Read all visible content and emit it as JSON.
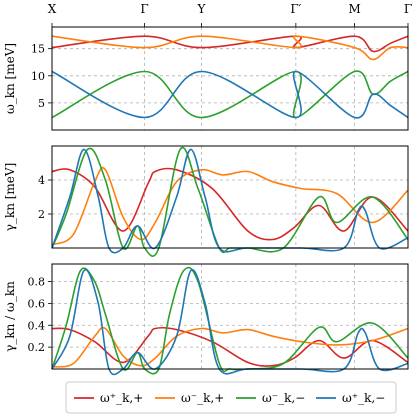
{
  "chart_data": [
    {
      "type": "line",
      "ylabel": "ω_kn [meV]",
      "ylim": [
        0,
        19
      ],
      "yticks": [
        "5",
        "10",
        "15"
      ],
      "x_points": [
        "X",
        "Γ",
        "Y",
        "Γ′",
        "M",
        "Γ"
      ],
      "x": [
        0,
        0.15,
        0.29,
        0.41,
        0.55,
        0.65,
        0.75,
        0.85,
        1.0
      ],
      "series": [
        {
          "name": "ω⁺_k,+",
          "color": "#d62728",
          "x": [
            0,
            0.15,
            0.29,
            0.415,
            0.55,
            0.695,
            0.8,
            0.9,
            1.0
          ],
          "values": [
            15.2,
            17.3,
            15.2,
            17.3,
            15.2,
            17.3,
            14.5,
            16.0,
            17.3
          ]
        },
        {
          "name": "ω⁻_k,+",
          "color": "#ff7f0e",
          "x": [
            0,
            0.15,
            0.29,
            0.415,
            0.55,
            0.695,
            0.8,
            0.9,
            1.0
          ],
          "values": [
            17.3,
            15.2,
            17.3,
            15.2,
            17.3,
            15.2,
            13.0,
            15.2,
            15.2
          ]
        },
        {
          "name": "ω⁻_k,−",
          "color": "#2ca02c",
          "x": [
            0,
            0.15,
            0.29,
            0.415,
            0.55,
            0.695,
            0.8,
            0.9,
            1.0
          ],
          "values": [
            2.3,
            10.8,
            2.3,
            10.8,
            2.3,
            10.8,
            6.6,
            9.0,
            10.8
          ]
        },
        {
          "name": "ω⁺_k,−",
          "color": "#1f77b4",
          "x": [
            0,
            0.15,
            0.29,
            0.415,
            0.55,
            0.695,
            0.8,
            0.9,
            1.0
          ],
          "values": [
            10.8,
            2.3,
            10.8,
            2.3,
            10.8,
            2.3,
            6.6,
            4.5,
            2.3
          ]
        }
      ]
    },
    {
      "type": "line",
      "ylabel": "γ_kn [meV]",
      "ylim": [
        0,
        6
      ],
      "yticks": [
        "2",
        "4"
      ],
      "series": [
        {
          "name": "ω⁺_k,+",
          "color": "#d62728",
          "x": [
            0,
            0.05,
            0.12,
            0.2,
            0.27,
            0.29,
            0.35,
            0.45,
            0.55,
            0.62,
            0.68,
            0.75,
            0.82,
            0.9,
            1.0
          ],
          "values": [
            4.5,
            4.6,
            3.6,
            1.0,
            3.8,
            4.5,
            4.6,
            3.5,
            1.0,
            0.5,
            1.2,
            2.5,
            1.0,
            3.0,
            1.0
          ]
        },
        {
          "name": "ω⁻_k,+",
          "color": "#ff7f0e",
          "x": [
            0,
            0.06,
            0.12,
            0.15,
            0.2,
            0.25,
            0.29,
            0.35,
            0.42,
            0.48,
            0.55,
            0.62,
            0.7,
            0.8,
            0.9,
            1.0
          ],
          "values": [
            0.2,
            0.8,
            3.9,
            4.6,
            1.8,
            0.5,
            1.5,
            3.9,
            4.6,
            4.3,
            4.5,
            3.9,
            3.5,
            3.2,
            1.5,
            3.4
          ]
        },
        {
          "name": "ω⁻_k,−",
          "color": "#2ca02c",
          "x": [
            0,
            0.04,
            0.1,
            0.15,
            0.2,
            0.24,
            0.26,
            0.3,
            0.36,
            0.41,
            0.47,
            0.5,
            0.55,
            0.65,
            0.75,
            0.8,
            0.9,
            1.0
          ],
          "values": [
            0,
            2.0,
            5.8,
            4.0,
            0,
            1.3,
            0,
            0,
            5.8,
            3.5,
            0,
            0,
            0,
            0,
            3.0,
            1.5,
            3.0,
            0.5
          ]
        },
        {
          "name": "ω⁺_k,−",
          "color": "#1f77b4",
          "x": [
            0,
            0.05,
            0.09,
            0.13,
            0.16,
            0.2,
            0.24,
            0.29,
            0.35,
            0.39,
            0.43,
            0.47,
            0.55,
            0.7,
            0.82,
            0.86,
            0.88,
            0.92,
            1.0
          ],
          "values": [
            0,
            3.0,
            5.8,
            3.0,
            0,
            0,
            1.3,
            0,
            3.0,
            5.8,
            3.0,
            0,
            0,
            0,
            0,
            2.2,
            2.2,
            0,
            0.6
          ]
        }
      ]
    },
    {
      "type": "line",
      "ylabel": "γ_kn / ω_kn",
      "ylim": [
        0,
        0.96
      ],
      "yticks": [
        "0.2",
        "0.4",
        "0.6",
        "0.8"
      ],
      "series": [
        {
          "name": "ω⁺_k,+",
          "color": "#d62728",
          "x": [
            0,
            0.05,
            0.12,
            0.2,
            0.27,
            0.29,
            0.35,
            0.45,
            0.55,
            0.62,
            0.68,
            0.75,
            0.82,
            0.9,
            1.0
          ],
          "values": [
            0.37,
            0.36,
            0.25,
            0.06,
            0.3,
            0.37,
            0.36,
            0.25,
            0.06,
            0.03,
            0.1,
            0.26,
            0.1,
            0.26,
            0.06
          ]
        },
        {
          "name": "ω⁻_k,+",
          "color": "#ff7f0e",
          "x": [
            0,
            0.06,
            0.12,
            0.15,
            0.2,
            0.25,
            0.29,
            0.35,
            0.42,
            0.48,
            0.55,
            0.62,
            0.7,
            0.8,
            0.9,
            1.0
          ],
          "values": [
            0.02,
            0.05,
            0.3,
            0.37,
            0.12,
            0.03,
            0.1,
            0.3,
            0.37,
            0.33,
            0.36,
            0.3,
            0.25,
            0.22,
            0.26,
            0.37
          ]
        },
        {
          "name": "ω⁻_k,−",
          "color": "#2ca02c",
          "x": [
            0,
            0.04,
            0.08,
            0.12,
            0.15,
            0.2,
            0.24,
            0.26,
            0.3,
            0.33,
            0.37,
            0.41,
            0.47,
            0.5,
            0.55,
            0.65,
            0.75,
            0.8,
            0.9,
            1.0
          ],
          "values": [
            0,
            0.4,
            0.9,
            0.8,
            0.5,
            0,
            0.15,
            0,
            0,
            0.5,
            0.9,
            0.8,
            0.05,
            0,
            0,
            0.05,
            0.38,
            0.25,
            0.42,
            0.1
          ]
        },
        {
          "name": "ω⁺_k,−",
          "color": "#1f77b4",
          "x": [
            0,
            0.05,
            0.09,
            0.13,
            0.16,
            0.2,
            0.24,
            0.29,
            0.35,
            0.39,
            0.43,
            0.47,
            0.55,
            0.7,
            0.82,
            0.86,
            0.88,
            0.92,
            1.0
          ],
          "values": [
            0,
            0.3,
            0.9,
            0.6,
            0,
            0,
            0.15,
            0,
            0.3,
            0.9,
            0.6,
            0,
            0,
            0,
            0,
            0.33,
            0.33,
            0,
            0.05
          ]
        }
      ]
    }
  ],
  "x_point_labels": [
    "X",
    "Γ",
    "Y",
    "Γ′",
    "M",
    "Γ"
  ],
  "legend": {
    "placement": "bottom",
    "entries": [
      {
        "label": "ω⁺_k,+",
        "color": "#d62728"
      },
      {
        "label": "ω⁻_k,+",
        "color": "#ff7f0e"
      },
      {
        "label": "ω⁻_k,−",
        "color": "#2ca02c"
      },
      {
        "label": "ω⁺_k,−",
        "color": "#1f77b4"
      }
    ]
  },
  "grid": "dashed"
}
